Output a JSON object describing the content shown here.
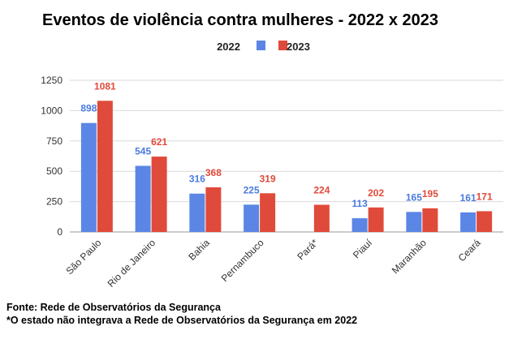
{
  "chart_data": {
    "type": "bar",
    "title": "Eventos de violência contra mulheres - 2022 x 2023",
    "categories": [
      "São Paulo",
      "Rio de Janeiro",
      "Bahia",
      "Pernambuco",
      "Pará*",
      "Piauí",
      "Maranhão",
      "Ceará"
    ],
    "series": [
      {
        "name": "2022",
        "color": "#5b86e5",
        "label_color": "#4a7be0",
        "values": [
          898,
          545,
          316,
          225,
          null,
          113,
          165,
          161
        ]
      },
      {
        "name": "2023",
        "color": "#e04a3a",
        "label_color": "#e04a3a",
        "values": [
          1081,
          621,
          368,
          319,
          224,
          202,
          195,
          171
        ]
      }
    ],
    "yticks": [
      0,
      250,
      500,
      750,
      1000,
      1250
    ],
    "ylim": [
      0,
      1250
    ],
    "grid": true,
    "legend": "top-center",
    "xlabel": "",
    "ylabel": ""
  },
  "notes": {
    "source": "Fonte: Rede de Observatórios da Segurança",
    "footnote": "*O estado não integrava a Rede de Observatórios da Segurança em 2022"
  }
}
